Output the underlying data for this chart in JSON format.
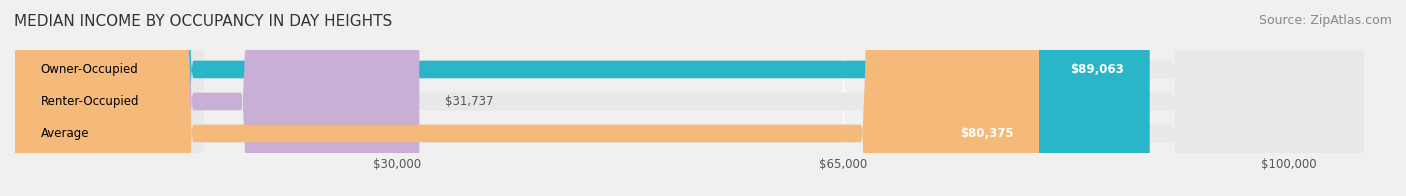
{
  "title": "MEDIAN INCOME BY OCCUPANCY IN DAY HEIGHTS",
  "source": "Source: ZipAtlas.com",
  "categories": [
    "Owner-Occupied",
    "Renter-Occupied",
    "Average"
  ],
  "values": [
    89063,
    31737,
    80375
  ],
  "bar_colors": [
    "#2bb5c8",
    "#c9aed6",
    "#f5b97a"
  ],
  "bar_labels": [
    "$89,063",
    "$31,737",
    "$80,375"
  ],
  "label_inside": [
    true,
    false,
    true
  ],
  "x_ticks": [
    30000,
    65000,
    100000
  ],
  "x_tick_labels": [
    "$30,000",
    "$65,000",
    "$100,000"
  ],
  "xlim": [
    0,
    108000
  ],
  "background_color": "#f0f0f0",
  "bar_bg_color": "#e8e8e8",
  "title_fontsize": 11,
  "source_fontsize": 9
}
